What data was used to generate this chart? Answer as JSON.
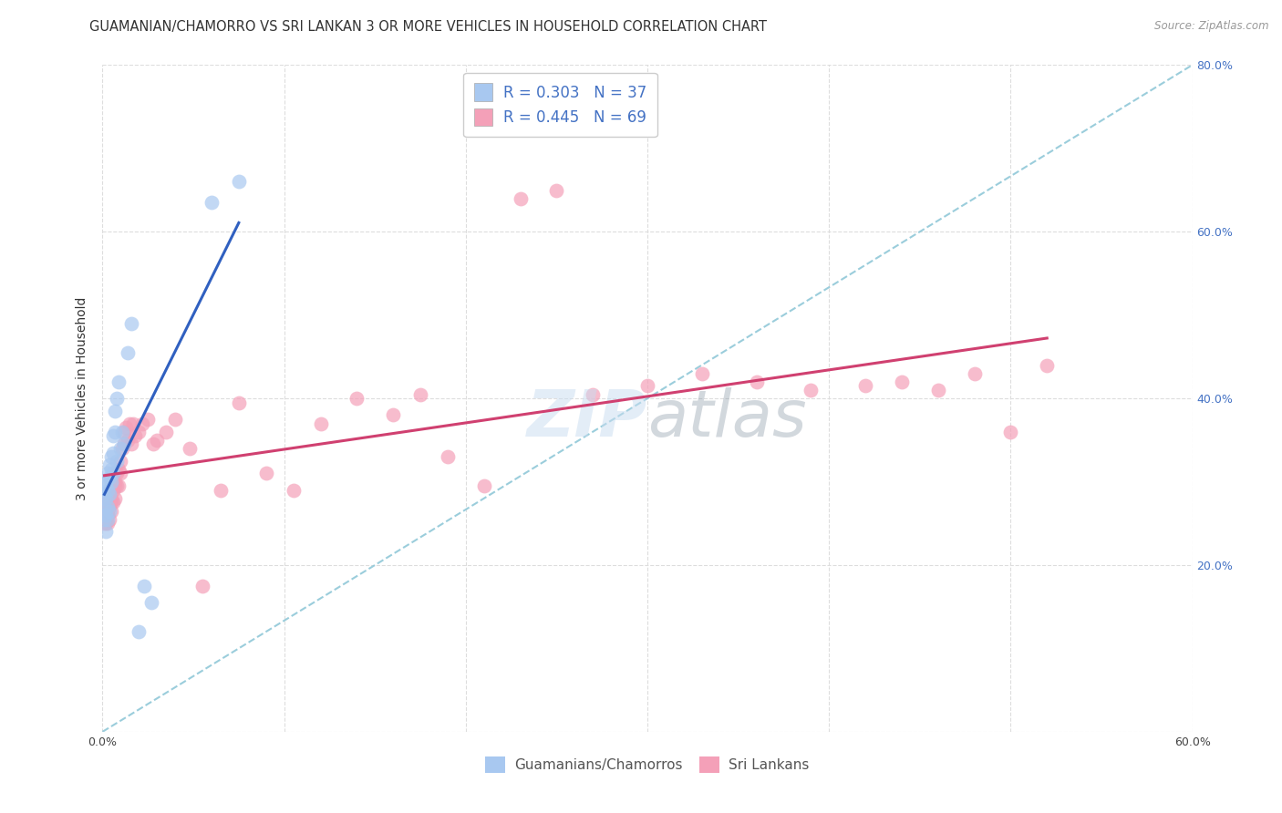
{
  "title": "GUAMANIAN/CHAMORRO VS SRI LANKAN 3 OR MORE VEHICLES IN HOUSEHOLD CORRELATION CHART",
  "source": "Source: ZipAtlas.com",
  "ylabel": "3 or more Vehicles in Household",
  "xlim": [
    0,
    0.6
  ],
  "ylim": [
    0,
    0.8
  ],
  "xtick_positions": [
    0.0,
    0.1,
    0.2,
    0.3,
    0.4,
    0.5,
    0.6
  ],
  "xtick_labels": [
    "0.0%",
    "",
    "",
    "",
    "",
    "",
    "60.0%"
  ],
  "ytick_positions": [
    0.0,
    0.2,
    0.4,
    0.6,
    0.8
  ],
  "ytick_labels_right": [
    "",
    "20.0%",
    "40.0%",
    "60.0%",
    "80.0%"
  ],
  "legend_line1": "R = 0.303   N = 37",
  "legend_line2": "R = 0.445   N = 69",
  "color_blue": "#A8C8F0",
  "color_pink": "#F4A0B8",
  "color_blue_line": "#3060C0",
  "color_pink_line": "#D04070",
  "color_dashed": "#90C8D8",
  "background_color": "#FFFFFF",
  "grid_color": "#DDDDDD",
  "guamanian_x": [
    0.001,
    0.001,
    0.001,
    0.002,
    0.002,
    0.002,
    0.002,
    0.002,
    0.003,
    0.003,
    0.003,
    0.003,
    0.004,
    0.004,
    0.004,
    0.004,
    0.005,
    0.005,
    0.005,
    0.006,
    0.006,
    0.006,
    0.007,
    0.007,
    0.008,
    0.008,
    0.009,
    0.01,
    0.011,
    0.012,
    0.014,
    0.016,
    0.02,
    0.023,
    0.027,
    0.06,
    0.075
  ],
  "guamanian_y": [
    0.27,
    0.285,
    0.255,
    0.295,
    0.3,
    0.28,
    0.24,
    0.26,
    0.31,
    0.29,
    0.27,
    0.255,
    0.305,
    0.32,
    0.285,
    0.265,
    0.33,
    0.315,
    0.3,
    0.355,
    0.335,
    0.31,
    0.385,
    0.36,
    0.4,
    0.325,
    0.42,
    0.34,
    0.36,
    0.345,
    0.455,
    0.49,
    0.12,
    0.175,
    0.155,
    0.635,
    0.66
  ],
  "srilanka_x": [
    0.001,
    0.001,
    0.001,
    0.002,
    0.002,
    0.002,
    0.002,
    0.003,
    0.003,
    0.003,
    0.003,
    0.004,
    0.004,
    0.004,
    0.005,
    0.005,
    0.005,
    0.006,
    0.006,
    0.007,
    0.007,
    0.007,
    0.008,
    0.008,
    0.009,
    0.009,
    0.01,
    0.01,
    0.011,
    0.012,
    0.012,
    0.013,
    0.014,
    0.015,
    0.016,
    0.017,
    0.018,
    0.02,
    0.022,
    0.025,
    0.028,
    0.03,
    0.035,
    0.04,
    0.048,
    0.055,
    0.065,
    0.075,
    0.09,
    0.105,
    0.12,
    0.14,
    0.16,
    0.175,
    0.19,
    0.21,
    0.23,
    0.25,
    0.27,
    0.3,
    0.33,
    0.36,
    0.39,
    0.42,
    0.44,
    0.46,
    0.48,
    0.5,
    0.52
  ],
  "srilanka_y": [
    0.25,
    0.265,
    0.27,
    0.255,
    0.27,
    0.28,
    0.25,
    0.26,
    0.275,
    0.25,
    0.26,
    0.27,
    0.285,
    0.255,
    0.275,
    0.265,
    0.28,
    0.29,
    0.275,
    0.295,
    0.3,
    0.28,
    0.31,
    0.295,
    0.315,
    0.295,
    0.31,
    0.325,
    0.34,
    0.36,
    0.345,
    0.365,
    0.35,
    0.37,
    0.345,
    0.37,
    0.355,
    0.36,
    0.37,
    0.375,
    0.345,
    0.35,
    0.36,
    0.375,
    0.34,
    0.175,
    0.29,
    0.395,
    0.31,
    0.29,
    0.37,
    0.4,
    0.38,
    0.405,
    0.33,
    0.295,
    0.64,
    0.65,
    0.405,
    0.415,
    0.43,
    0.42,
    0.41,
    0.415,
    0.42,
    0.41,
    0.43,
    0.36,
    0.44
  ]
}
